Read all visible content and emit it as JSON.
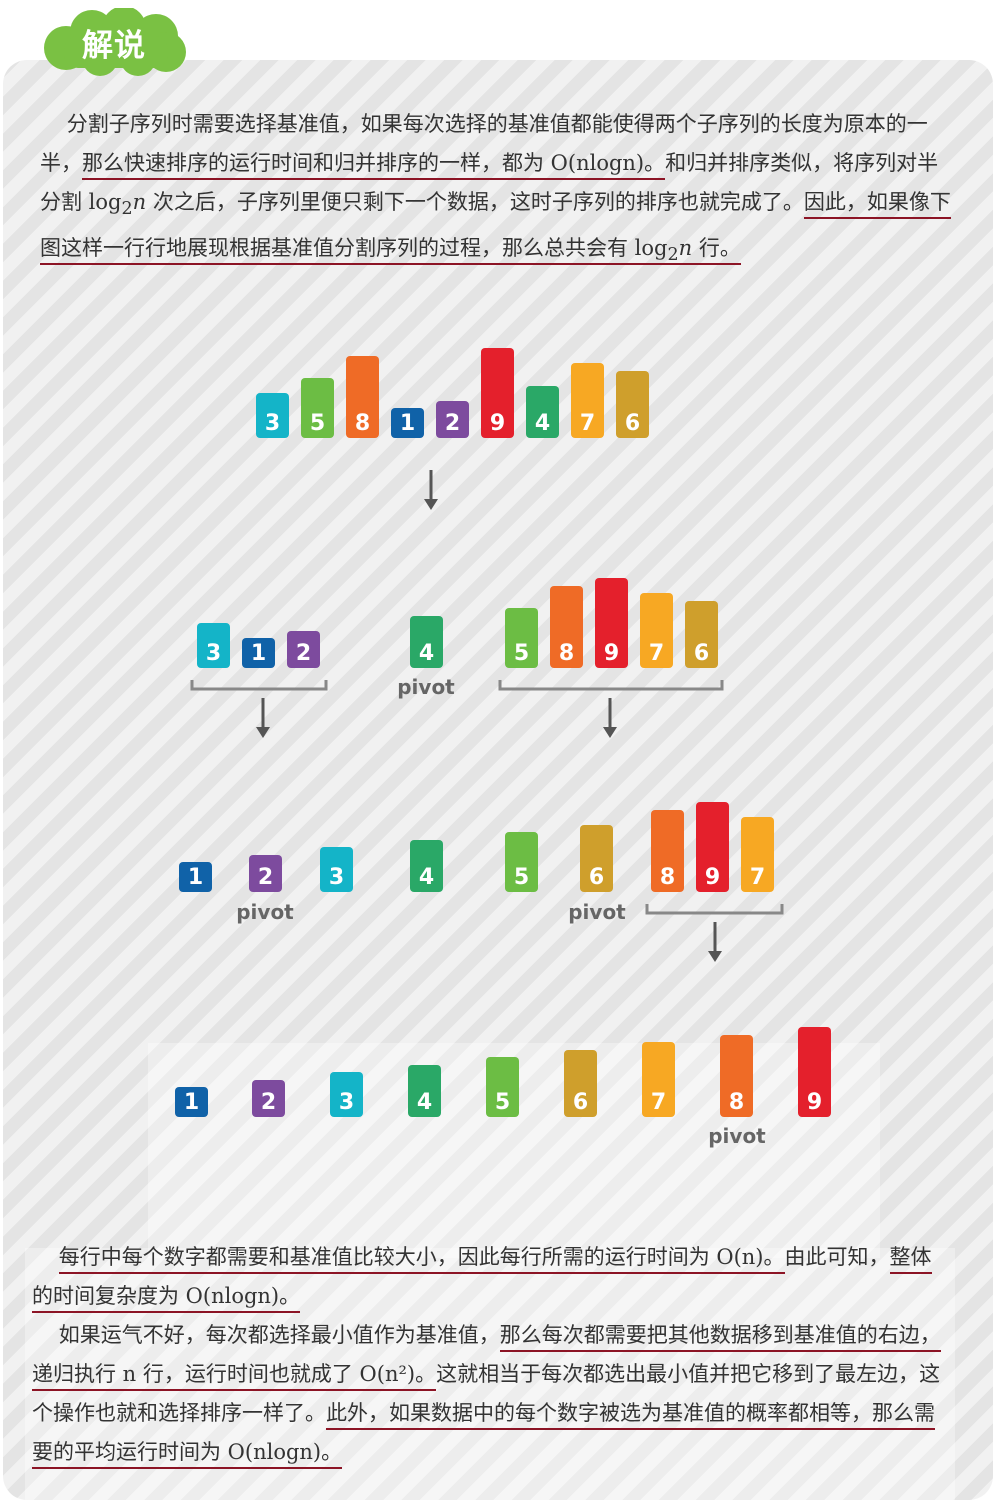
{
  "heading": {
    "badge": "解说"
  },
  "paragraph1": {
    "s1": "分割子序列时需要选择基准值，如果每次选择的基准值都能使得两个子序列的长度为原本的一半，",
    "u1": "那么快速排序的运行时间和归并排序的一样，都为 O(nlogn)。",
    "s2": "和归并排序类似，将序列对半分割 log",
    "sub": "2",
    "var": "n",
    "s3": " 次之后，子序列里便只剩下一个数据，这时子序列的排序也就完成了。",
    "u2a": "因此，如果像下图这样一行行地展现根据基准值分割序列的过程，那么总共会有 log",
    "u2sub": "2",
    "u2var": "n",
    "u2b": " 行。"
  },
  "diagram": {
    "pivot_label": "pivot",
    "row1": [
      "3",
      "5",
      "8",
      "1",
      "2",
      "9",
      "4",
      "7",
      "6"
    ],
    "row2": [
      "3",
      "1",
      "2",
      "4",
      "5",
      "8",
      "9",
      "7",
      "6"
    ],
    "row3": [
      "1",
      "2",
      "3",
      "4",
      "5",
      "6",
      "8",
      "9",
      "7"
    ],
    "row4": [
      "1",
      "2",
      "3",
      "4",
      "5",
      "6",
      "7",
      "8",
      "9"
    ],
    "colors": {
      "1": "#1062a8",
      "2": "#7d4b9e",
      "3": "#14b4c8",
      "4": "#2aa867",
      "5": "#6cbd44",
      "6": "#cf9f2c",
      "7": "#f7a823",
      "8": "#ef6b26",
      "9": "#e4202c"
    }
  },
  "paragraph2": {
    "u1": "每行中每个数字都需要和基准值比较大小，因此每行所需的运行时间为 O(n)。",
    "s1": "由此可知，",
    "u2": "整体的时间复杂度为 O(nlogn)。"
  },
  "paragraph3": {
    "s1": "如果运气不好，每次都选择最小值作为基准值，",
    "u1": "那么每次都需要把其他数据移到基准值的右边，递归执行 n 行，运行时间也就成了 O(n²)。",
    "s2": "这就相当于每次都选出最小值并把它移到了最左边，这个操作也就和选择排序一样了。",
    "u2": "此外，如果数据中的每个数字被选为基准值的概率都相等，那么需要的平均运行时间为 O(nlogn)。"
  }
}
